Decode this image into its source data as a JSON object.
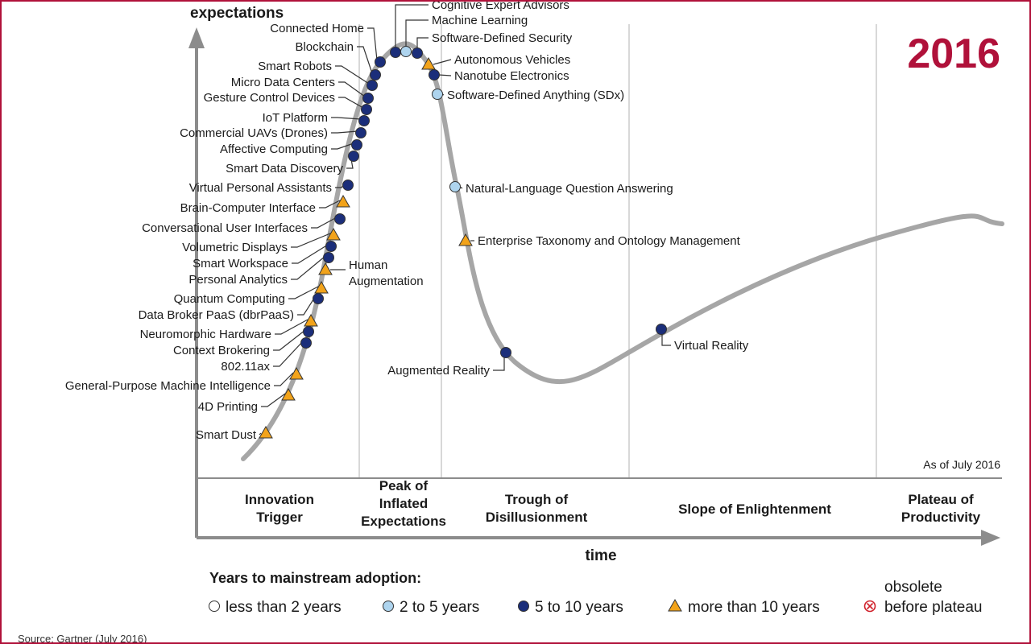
{
  "year": "2016",
  "as_of": "As of July 2016",
  "source": "Source: Gartner (July 2016)",
  "axis": {
    "y": "expectations",
    "x": "time"
  },
  "phases": [
    {
      "lines": [
        "Innovation",
        "Trigger"
      ]
    },
    {
      "lines": [
        "Peak of",
        "Inflated",
        "Expectations"
      ]
    },
    {
      "lines": [
        "Trough of",
        "Disillusionment"
      ]
    },
    {
      "lines": [
        "Slope of Enlightenment"
      ]
    },
    {
      "lines": [
        "Plateau of",
        "Productivity"
      ]
    }
  ],
  "legend": {
    "title": "Years to mainstream adoption:",
    "items": [
      {
        "label": "less than 2 years",
        "marker": "circle-white"
      },
      {
        "label": "2 to 5 years",
        "marker": "circle-light"
      },
      {
        "label": "5 to 10 years",
        "marker": "circle-dark"
      },
      {
        "label": "more than 10 years",
        "marker": "triangle"
      }
    ],
    "obsolete": {
      "lines": [
        "obsolete",
        "before plateau"
      ],
      "marker": "circle-cross"
    }
  },
  "colors": {
    "curve": "#a6a6a6",
    "dark": "#1b2e7a",
    "light": "#aed4ee",
    "triangle": "#f2a31a",
    "brand": "#b0113a"
  },
  "technologies": [
    {
      "name": "Cognitive Expert Advisors",
      "marker": "circle-dark"
    },
    {
      "name": "Machine Learning",
      "marker": "circle-light"
    },
    {
      "name": "Software-Defined Security",
      "marker": "circle-dark"
    },
    {
      "name": "Connected Home",
      "marker": "circle-dark"
    },
    {
      "name": "Blockchain",
      "marker": "circle-dark"
    },
    {
      "name": "Smart Robots",
      "marker": "circle-dark"
    },
    {
      "name": "Micro Data Centers",
      "marker": "circle-dark"
    },
    {
      "name": "Gesture Control Devices",
      "marker": "circle-dark"
    },
    {
      "name": "IoT Platform",
      "marker": "circle-dark"
    },
    {
      "name": "Commercial UAVs (Drones)",
      "marker": "circle-dark"
    },
    {
      "name": "Affective Computing",
      "marker": "circle-dark"
    },
    {
      "name": "Smart Data Discovery",
      "marker": "circle-dark"
    },
    {
      "name": "Virtual Personal Assistants",
      "marker": "circle-dark"
    },
    {
      "name": "Brain-Computer Interface",
      "marker": "triangle"
    },
    {
      "name": "Conversational User Interfaces",
      "marker": "circle-dark"
    },
    {
      "name": "Volumetric Displays",
      "marker": "triangle"
    },
    {
      "name": "Smart Workspace",
      "marker": "circle-dark"
    },
    {
      "name": "Personal Analytics",
      "marker": "circle-dark"
    },
    {
      "name": "Human Augmentation",
      "marker": "triangle"
    },
    {
      "name": "Quantum Computing",
      "marker": "triangle"
    },
    {
      "name": "Data Broker PaaS (dbrPaaS)",
      "marker": "circle-dark"
    },
    {
      "name": "Neuromorphic Hardware",
      "marker": "triangle"
    },
    {
      "name": "Context Brokering",
      "marker": "circle-dark"
    },
    {
      "name": "802.11ax",
      "marker": "circle-dark"
    },
    {
      "name": "General-Purpose Machine Intelligence",
      "marker": "triangle"
    },
    {
      "name": "4D Printing",
      "marker": "triangle"
    },
    {
      "name": "Smart Dust",
      "marker": "triangle"
    },
    {
      "name": "Autonomous Vehicles",
      "marker": "triangle"
    },
    {
      "name": "Nanotube Electronics",
      "marker": "circle-dark"
    },
    {
      "name": "Software-Defined Anything (SDx)",
      "marker": "circle-light"
    },
    {
      "name": "Natural-Language Question Answering",
      "marker": "circle-light"
    },
    {
      "name": "Enterprise Taxonomy and Ontology Management",
      "marker": "triangle"
    },
    {
      "name": "Augmented Reality",
      "marker": "circle-dark"
    },
    {
      "name": "Virtual Reality",
      "marker": "circle-dark"
    }
  ]
}
